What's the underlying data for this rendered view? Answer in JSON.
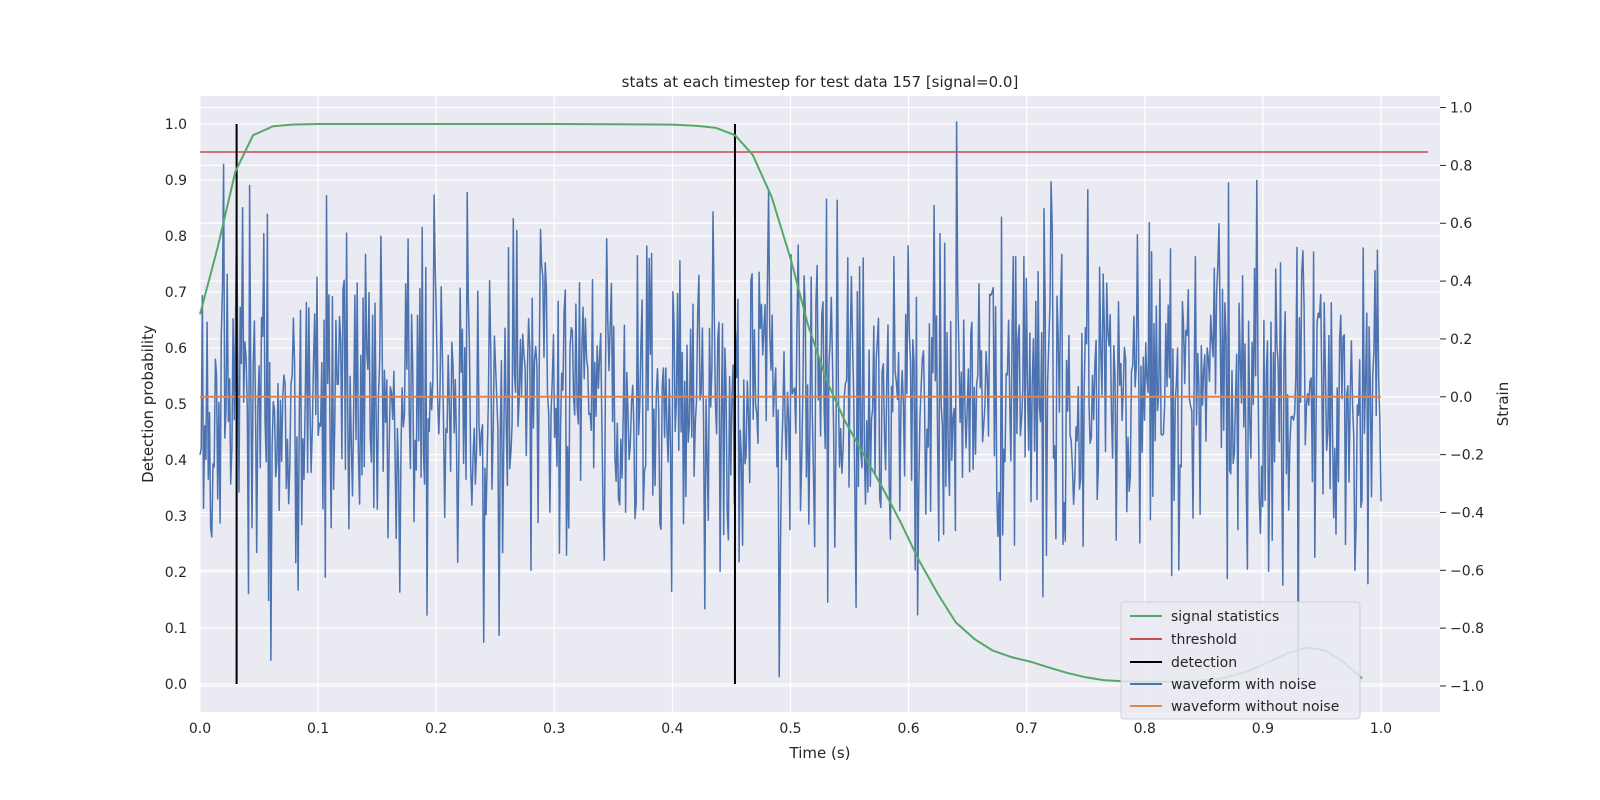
{
  "chart_data": {
    "type": "line",
    "title": "stats at each timestep for test data 157 [signal=0.0]",
    "xlabel": "Time (s)",
    "ylabel": "Detection probability",
    "y2label": "Strain",
    "xlim": [
      0.0,
      1.05
    ],
    "ylim": [
      -0.05,
      1.05
    ],
    "y2lim": [
      -1.09,
      1.04
    ],
    "xticks": [
      "0.0",
      "0.1",
      "0.2",
      "0.3",
      "0.4",
      "0.5",
      "0.6",
      "0.7",
      "0.8",
      "0.9",
      "1.0"
    ],
    "yticks": [
      "0.0",
      "0.1",
      "0.2",
      "0.3",
      "0.4",
      "0.5",
      "0.6",
      "0.7",
      "0.8",
      "0.9",
      "1.0"
    ],
    "y2ticks": [
      "−1.0",
      "−0.8",
      "−0.6",
      "−0.4",
      "−0.2",
      "0.0",
      "0.2",
      "0.4",
      "0.6",
      "0.8",
      "1.0"
    ],
    "grid": true,
    "legend_position": "lower-right",
    "legend": [
      "signal statistics",
      "threshold",
      "detection",
      "waveform with noise",
      "waveform without noise"
    ],
    "colors": {
      "signal_statistics": "#55a868",
      "threshold": "#c44e52",
      "detection": "#000000",
      "waveform_with_noise": "#4c72b0",
      "waveform_without_noise": "#dd8452",
      "plot_background": "#eaeaf2",
      "grid": "#ffffff"
    },
    "series": [
      {
        "name": "signal statistics",
        "axis": "left",
        "x": [
          0.0,
          0.015,
          0.03,
          0.045,
          0.062,
          0.078,
          0.1,
          0.15,
          0.2,
          0.3,
          0.4,
          0.42,
          0.437,
          0.453,
          0.468,
          0.484,
          0.5,
          0.515,
          0.531,
          0.546,
          0.562,
          0.578,
          0.593,
          0.609,
          0.625,
          0.64,
          0.656,
          0.671,
          0.687,
          0.703,
          0.718,
          0.734,
          0.75,
          0.765,
          0.781,
          0.8,
          0.82,
          0.84,
          0.86,
          0.875,
          0.89,
          0.906,
          0.921,
          0.937,
          0.953,
          0.968,
          0.984
        ],
        "y": [
          0.66,
          0.78,
          0.915,
          0.98,
          0.996,
          0.999,
          1.0,
          1.0,
          1.0,
          1.0,
          0.999,
          0.997,
          0.993,
          0.98,
          0.945,
          0.87,
          0.76,
          0.64,
          0.54,
          0.47,
          0.41,
          0.35,
          0.29,
          0.22,
          0.16,
          0.11,
          0.08,
          0.06,
          0.048,
          0.04,
          0.03,
          0.02,
          0.012,
          0.007,
          0.005,
          0.004,
          0.004,
          0.005,
          0.008,
          0.015,
          0.025,
          0.04,
          0.055,
          0.065,
          0.06,
          0.04,
          0.01
        ]
      },
      {
        "name": "threshold",
        "axis": "left",
        "x": [
          0.0,
          1.04
        ],
        "y": [
          0.95,
          0.95
        ]
      },
      {
        "name": "detection",
        "axis": "left",
        "x": [
          0.031,
          0.453
        ],
        "y": [
          0.0,
          1.0
        ]
      },
      {
        "name": "waveform with noise",
        "axis": "right",
        "x_range": [
          0.0,
          1.0
        ],
        "n_points": 1000,
        "std": 0.3,
        "max": 0.95,
        "min": -1.0
      },
      {
        "name": "waveform without noise",
        "axis": "right",
        "x": [
          0.0,
          1.0
        ],
        "y": [
          0.0,
          0.0
        ]
      }
    ]
  }
}
